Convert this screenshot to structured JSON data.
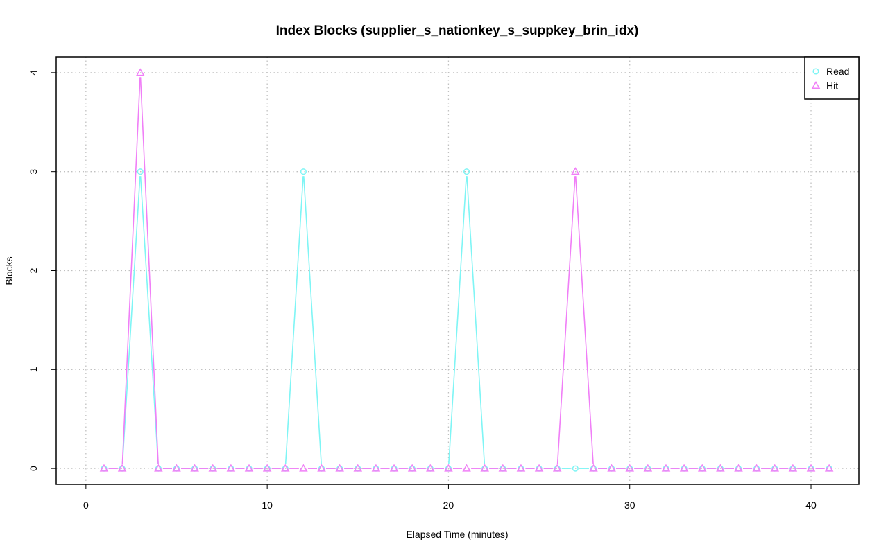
{
  "chart_data": {
    "type": "line",
    "title": "Index Blocks (supplier_s_nationkey_s_suppkey_brin_idx)",
    "xlabel": "Elapsed Time (minutes)",
    "ylabel": "Blocks",
    "xlim": [
      -1.64,
      42.64
    ],
    "ylim": [
      -0.16,
      4.16
    ],
    "x_ticks": [
      0,
      10,
      20,
      30,
      40
    ],
    "y_ticks": [
      0,
      1,
      2,
      3,
      4
    ],
    "grid": true,
    "legend_position": "top-right",
    "x": [
      1,
      2,
      3,
      4,
      5,
      6,
      7,
      8,
      9,
      10,
      11,
      12,
      13,
      14,
      15,
      16,
      17,
      18,
      19,
      20,
      21,
      22,
      23,
      24,
      25,
      26,
      27,
      28,
      29,
      30,
      31,
      32,
      33,
      34,
      35,
      36,
      37,
      38,
      39,
      40,
      41
    ],
    "series": [
      {
        "name": "Read",
        "color": "#7ff5f5",
        "marker": "circle",
        "values": [
          0,
          0,
          3,
          0,
          0,
          0,
          0,
          0,
          0,
          0,
          0,
          3,
          0,
          0,
          0,
          0,
          0,
          0,
          0,
          0,
          3,
          0,
          0,
          0,
          0,
          0,
          0,
          0,
          0,
          0,
          0,
          0,
          0,
          0,
          0,
          0,
          0,
          0,
          0,
          0,
          0
        ]
      },
      {
        "name": "Hit",
        "color": "#f07ff7",
        "marker": "triangle",
        "values": [
          0,
          0,
          4,
          0,
          0,
          0,
          0,
          0,
          0,
          0,
          0,
          0,
          0,
          0,
          0,
          0,
          0,
          0,
          0,
          0,
          0,
          0,
          0,
          0,
          0,
          0,
          3,
          0,
          0,
          0,
          0,
          0,
          0,
          0,
          0,
          0,
          0,
          0,
          0,
          0,
          0
        ]
      }
    ]
  }
}
